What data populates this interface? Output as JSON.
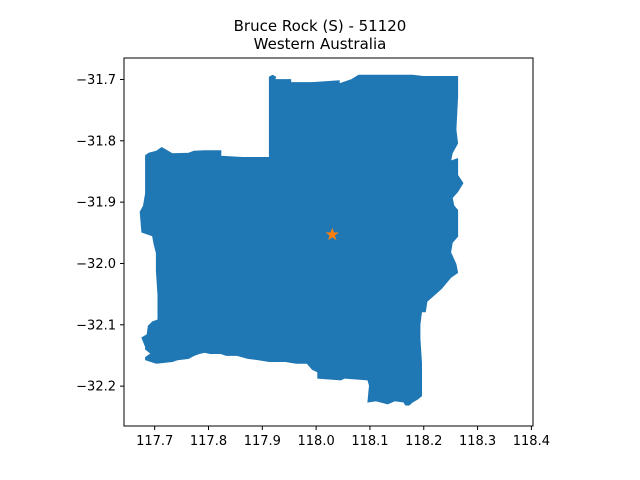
{
  "chart_data": {
    "type": "map",
    "title_line1": "Bruce Rock (S) - 51120",
    "title_line2": "Western Australia",
    "xlim": [
      117.643,
      118.403
    ],
    "ylim": [
      -32.265,
      -31.665
    ],
    "x_ticks": [
      117.7,
      117.8,
      117.9,
      118.0,
      118.1,
      118.2,
      118.3,
      118.4
    ],
    "x_tick_labels": [
      "117.7",
      "117.8",
      "117.9",
      "118.0",
      "118.1",
      "118.2",
      "118.3",
      "118.4"
    ],
    "y_ticks": [
      -31.7,
      -31.8,
      -31.9,
      -32.0,
      -32.1,
      -32.2
    ],
    "y_tick_labels": [
      "−31.7",
      "−31.8",
      "−31.9",
      "−32.0",
      "−32.1",
      "−32.2"
    ],
    "grid": false,
    "region_color": "#1f77b4",
    "marker_color": "#ff7f0e",
    "marker_symbol": "star",
    "marker_point": [
      118.03,
      -31.953
    ],
    "region_boundary": [
      [
        117.913,
        -31.696
      ],
      [
        117.919,
        -31.693
      ],
      [
        117.925,
        -31.696
      ],
      [
        117.923,
        -31.7
      ],
      [
        117.953,
        -31.7
      ],
      [
        117.953,
        -31.705
      ],
      [
        117.993,
        -31.705
      ],
      [
        118.043,
        -31.702
      ],
      [
        118.043,
        -31.707
      ],
      [
        118.066,
        -31.7
      ],
      [
        118.079,
        -31.693
      ],
      [
        118.179,
        -31.693
      ],
      [
        118.199,
        -31.695
      ],
      [
        118.263,
        -31.695
      ],
      [
        118.263,
        -31.728
      ],
      [
        118.26,
        -31.782
      ],
      [
        118.263,
        -31.804
      ],
      [
        118.253,
        -31.82
      ],
      [
        118.25,
        -31.833
      ],
      [
        118.263,
        -31.829
      ],
      [
        118.263,
        -31.856
      ],
      [
        118.273,
        -31.869
      ],
      [
        118.263,
        -31.883
      ],
      [
        118.253,
        -31.893
      ],
      [
        118.256,
        -31.906
      ],
      [
        118.263,
        -31.913
      ],
      [
        118.263,
        -31.956
      ],
      [
        118.253,
        -31.966
      ],
      [
        118.25,
        -31.982
      ],
      [
        118.26,
        -32.001
      ],
      [
        118.263,
        -32.015
      ],
      [
        118.25,
        -32.023
      ],
      [
        118.233,
        -32.041
      ],
      [
        118.223,
        -32.049
      ],
      [
        118.206,
        -32.062
      ],
      [
        118.203,
        -32.079
      ],
      [
        118.196,
        -32.079
      ],
      [
        118.193,
        -32.1
      ],
      [
        118.193,
        -32.122
      ],
      [
        118.196,
        -32.163
      ],
      [
        118.196,
        -32.216
      ],
      [
        118.189,
        -32.221
      ],
      [
        118.179,
        -32.226
      ],
      [
        118.173,
        -32.231
      ],
      [
        118.166,
        -32.231
      ],
      [
        118.163,
        -32.226
      ],
      [
        118.146,
        -32.224
      ],
      [
        118.133,
        -32.229
      ],
      [
        118.111,
        -32.224
      ],
      [
        118.096,
        -32.226
      ],
      [
        118.099,
        -32.199
      ],
      [
        118.096,
        -32.19
      ],
      [
        118.053,
        -32.187
      ],
      [
        118.046,
        -32.19
      ],
      [
        118.003,
        -32.187
      ],
      [
        118.003,
        -32.177
      ],
      [
        117.993,
        -32.173
      ],
      [
        117.983,
        -32.163
      ],
      [
        117.963,
        -32.163
      ],
      [
        117.943,
        -32.16
      ],
      [
        117.913,
        -32.16
      ],
      [
        117.893,
        -32.157
      ],
      [
        117.873,
        -32.155
      ],
      [
        117.853,
        -32.15
      ],
      [
        117.833,
        -32.15
      ],
      [
        117.823,
        -32.147
      ],
      [
        117.803,
        -32.147
      ],
      [
        117.793,
        -32.145
      ],
      [
        117.783,
        -32.147
      ],
      [
        117.773,
        -32.15
      ],
      [
        117.763,
        -32.155
      ],
      [
        117.743,
        -32.157
      ],
      [
        117.733,
        -32.16
      ],
      [
        117.703,
        -32.163
      ],
      [
        117.693,
        -32.16
      ],
      [
        117.683,
        -32.157
      ],
      [
        117.683,
        -32.153
      ],
      [
        117.693,
        -32.147
      ],
      [
        117.683,
        -32.14
      ],
      [
        117.683,
        -32.136
      ],
      [
        117.676,
        -32.121
      ],
      [
        117.686,
        -32.116
      ],
      [
        117.688,
        -32.102
      ],
      [
        117.696,
        -32.095
      ],
      [
        117.706,
        -32.092
      ],
      [
        117.706,
        -32.052
      ],
      [
        117.703,
        -32.012
      ],
      [
        117.703,
        -31.983
      ],
      [
        117.699,
        -31.969
      ],
      [
        117.696,
        -31.955
      ],
      [
        117.676,
        -31.949
      ],
      [
        117.673,
        -31.916
      ],
      [
        117.679,
        -31.906
      ],
      [
        117.683,
        -31.886
      ],
      [
        117.683,
        -31.85
      ],
      [
        117.683,
        -31.824
      ],
      [
        117.689,
        -31.82
      ],
      [
        117.703,
        -31.817
      ],
      [
        117.713,
        -31.811
      ],
      [
        117.723,
        -31.816
      ],
      [
        117.733,
        -31.821
      ],
      [
        117.763,
        -31.82
      ],
      [
        117.773,
        -31.817
      ],
      [
        117.793,
        -31.816
      ],
      [
        117.823,
        -31.816
      ],
      [
        117.823,
        -31.825
      ],
      [
        117.863,
        -31.827
      ],
      [
        117.913,
        -31.827
      ]
    ]
  }
}
